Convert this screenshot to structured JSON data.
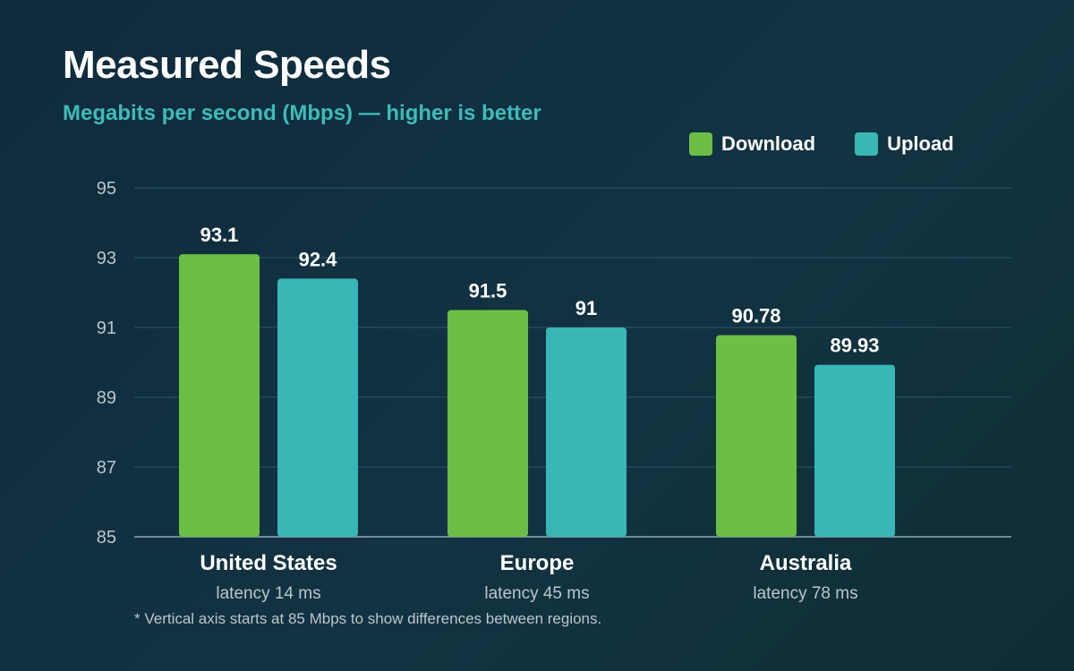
{
  "title": "Measured Speeds",
  "subtitle": "Megabits per second (Mbps) — higher is better",
  "footnote": "* Vertical axis starts at 85 Mbps to show differences between regions.",
  "colors": {
    "download": "#6cbf45",
    "upload": "#39b7b6",
    "subtitle": "#3cbdb8",
    "grid": "#2b5866"
  },
  "legend": {
    "download_label": "Download",
    "upload_label": "Upload"
  },
  "chart_data": {
    "type": "bar",
    "title": "Measured Speeds",
    "subtitle": "Megabits per second (Mbps) — higher is better",
    "categories": [
      "United States",
      "Europe",
      "Australia"
    ],
    "category_sublabels": [
      "latency 14 ms",
      "latency 45 ms",
      "latency 78 ms"
    ],
    "series": [
      {
        "name": "Download",
        "values": [
          93.1,
          91.5,
          90.78
        ],
        "labels": [
          "93.1",
          "91.5",
          "90.78"
        ]
      },
      {
        "name": "Upload",
        "values": [
          92.4,
          91,
          89.93
        ],
        "labels": [
          "92.4",
          "91",
          "89.93"
        ]
      }
    ],
    "ylim": [
      85,
      95
    ],
    "yticks": [
      "85",
      "87",
      "89",
      "91",
      "93",
      "95"
    ],
    "grid": true,
    "legend_position": "top-right",
    "xlabel": "",
    "ylabel": ""
  }
}
